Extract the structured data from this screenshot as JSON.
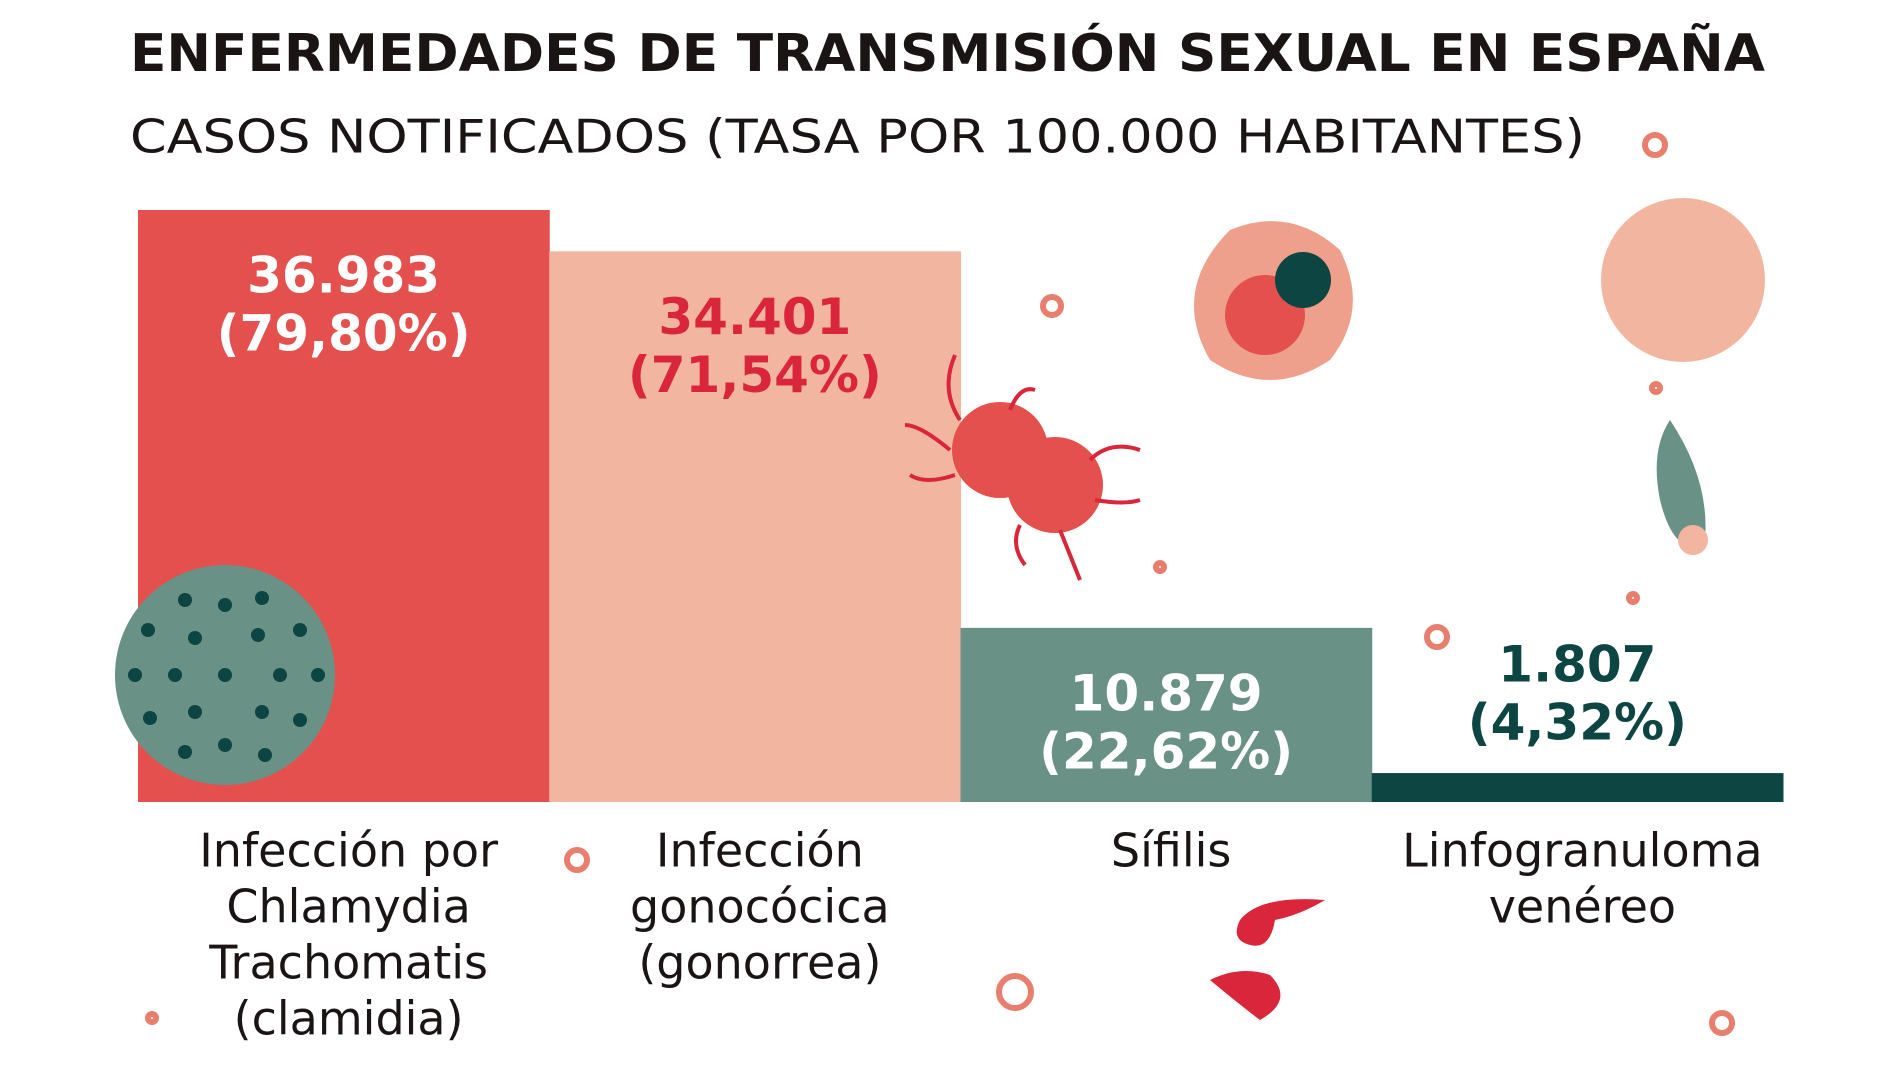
{
  "chart_data": {
    "type": "bar",
    "title": "ENFERMEDADES DE TRANSMISIÓN SEXUAL EN ESPAÑA",
    "subtitle": "CASOS NOTIFICADOS (TASA POR 100.000 HABITANTES)",
    "categories": [
      [
        "Infección por",
        "Chlamydia",
        "Trachomatis",
        "(clamidia)"
      ],
      [
        "Infección",
        "gonocócica",
        "(gonorrea)"
      ],
      [
        "Sífilis"
      ],
      [
        "Linfogranuloma",
        "venéreo"
      ]
    ],
    "values": [
      36983,
      34401,
      10879,
      1807
    ],
    "value_labels": [
      "36.983",
      "34.401",
      "10.879",
      "1.807"
    ],
    "share_labels": [
      "(79,80%)",
      "(71,54%)",
      "(22,62%)",
      "(4,32%)"
    ],
    "colors": [
      "#e3504d",
      "#f2b5a0",
      "#6a9186",
      "#0d4543"
    ],
    "label_colors": [
      "#ffffff",
      "#d9263b",
      "#ffffff",
      "#0d4543"
    ]
  }
}
